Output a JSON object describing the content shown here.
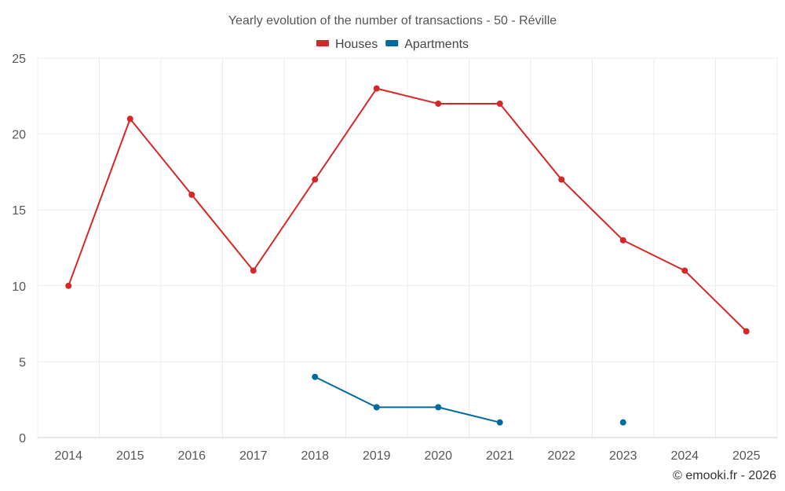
{
  "chart_data": {
    "type": "line",
    "title": "Yearly evolution of the number of transactions - 50 - Réville",
    "xlabel": "",
    "ylabel": "",
    "ylim": [
      0,
      25
    ],
    "yticks": [
      0,
      5,
      10,
      15,
      20,
      25
    ],
    "grid": true,
    "legend_position": "top-center",
    "categories": [
      "2014",
      "2015",
      "2016",
      "2017",
      "2018",
      "2019",
      "2020",
      "2021",
      "2022",
      "2023",
      "2024",
      "2025"
    ],
    "series": [
      {
        "name": "Houses",
        "color": "#d62728",
        "values": [
          10,
          21,
          16,
          11,
          17,
          23,
          22,
          22,
          17,
          13,
          11,
          7
        ]
      },
      {
        "name": "Apartments",
        "color": "#00699f",
        "values": [
          null,
          null,
          null,
          null,
          4,
          2,
          2,
          1,
          null,
          1,
          null,
          null
        ]
      }
    ]
  },
  "credit": "© emooki.fr - 2026"
}
